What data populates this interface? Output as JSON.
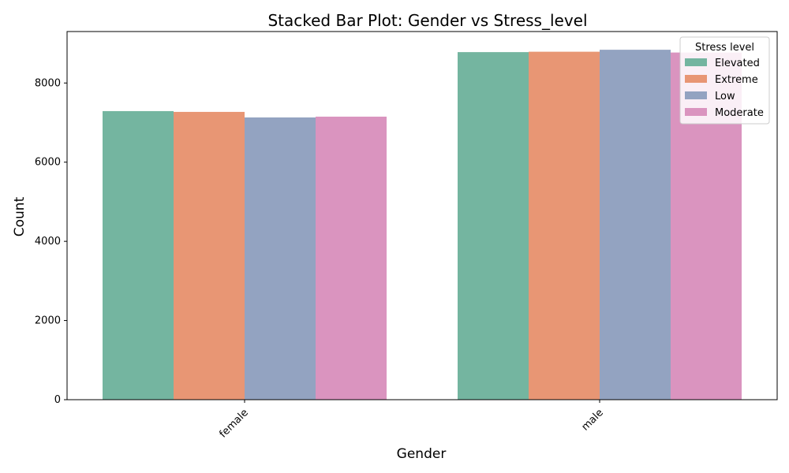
{
  "chart_data": {
    "type": "bar",
    "title": "Stacked Bar Plot: Gender vs Stress_level",
    "xlabel": "Gender",
    "ylabel": "Count",
    "categories": [
      "female",
      "male"
    ],
    "ylim": [
      0,
      9300
    ],
    "yticks": [
      0,
      2000,
      4000,
      6000,
      8000
    ],
    "legend_title": "Stress level",
    "legend_position": "top-right",
    "series": [
      {
        "name": "Elevated",
        "color": "#74b5a0",
        "values": [
          7290,
          8780
        ]
      },
      {
        "name": "Extreme",
        "color": "#e89674",
        "values": [
          7270,
          8790
        ]
      },
      {
        "name": "Low",
        "color": "#93a3c1",
        "values": [
          7130,
          8840
        ]
      },
      {
        "name": "Moderate",
        "color": "#da94bf",
        "values": [
          7150,
          8770
        ]
      }
    ]
  }
}
